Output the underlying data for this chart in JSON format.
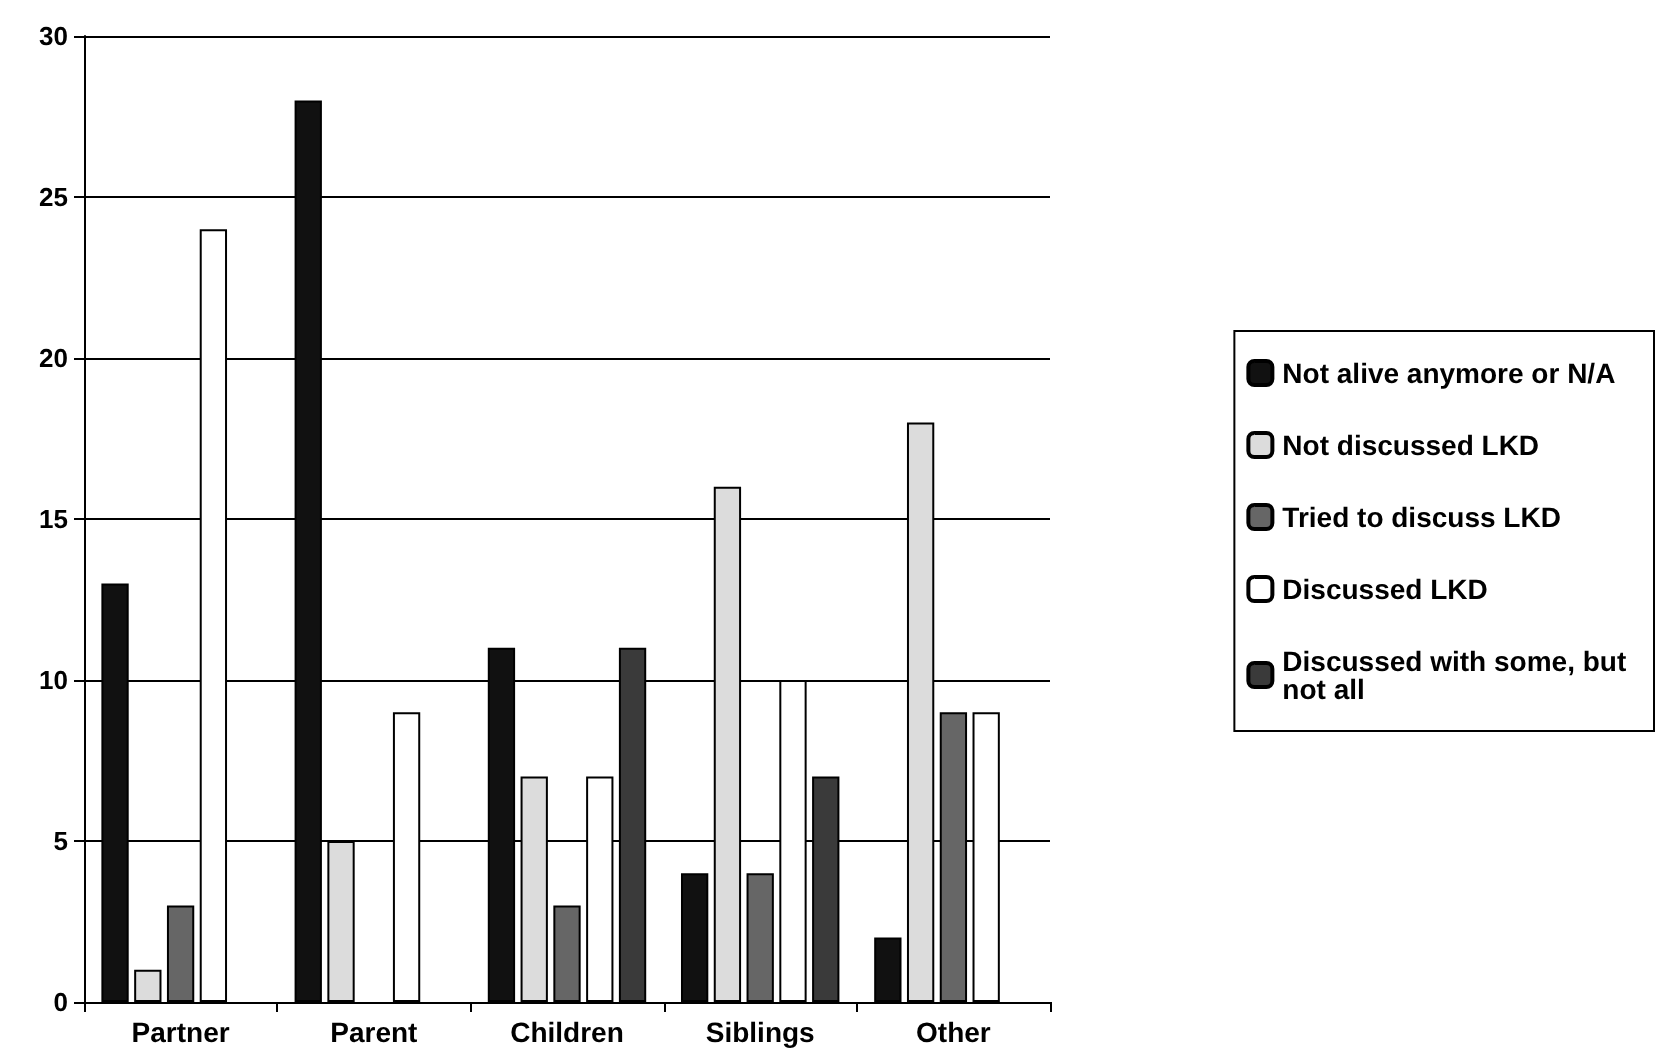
{
  "chart_data": {
    "type": "bar",
    "categories": [
      "Partner",
      "Parent",
      "Children",
      "Siblings",
      "Other"
    ],
    "series": [
      {
        "name": "Not alive anymore or N/A",
        "color": "#111111",
        "values": [
          13,
          28,
          11,
          4,
          2
        ]
      },
      {
        "name": "Not discussed LKD",
        "color": "#dcdcdc",
        "values": [
          1,
          5,
          7,
          16,
          18
        ]
      },
      {
        "name": "Tried to discuss LKD",
        "color": "#666666",
        "values": [
          3,
          0,
          3,
          4,
          9
        ]
      },
      {
        "name": "Discussed LKD",
        "color": "#ffffff",
        "values": [
          24,
          9,
          7,
          10,
          9
        ]
      },
      {
        "name": "Discussed with some, but not all",
        "color": "#3a3a3a",
        "values": [
          0,
          0,
          11,
          7,
          0
        ]
      }
    ],
    "ylim": [
      0,
      30
    ],
    "yticks": [
      0,
      5,
      10,
      15,
      20,
      25,
      30
    ],
    "grid": "y",
    "legend": "right"
  }
}
